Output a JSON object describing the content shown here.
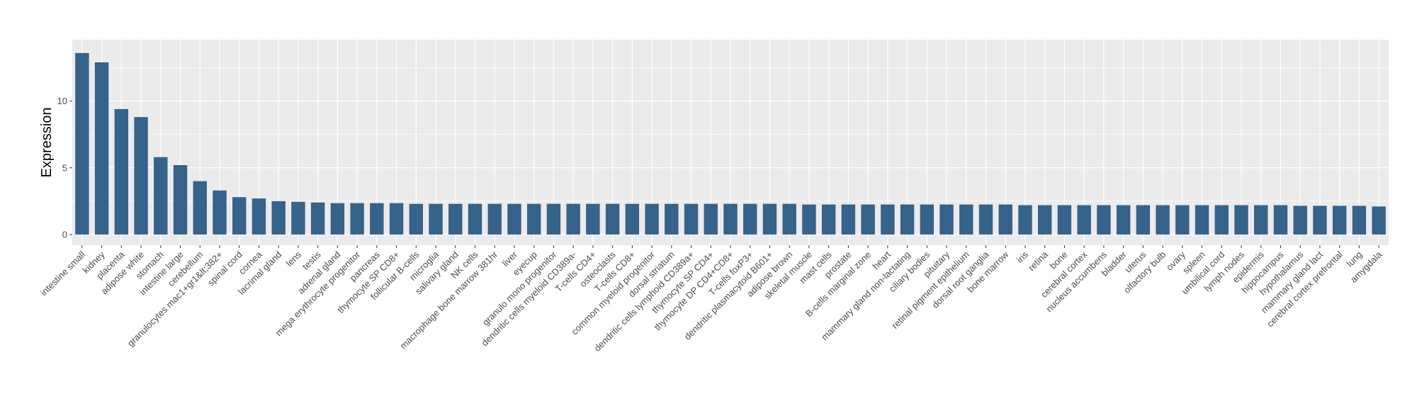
{
  "chart_data": {
    "type": "bar",
    "title": "",
    "xlabel": "",
    "ylabel": "Expression",
    "ylim": [
      -0.8,
      14.6
    ],
    "yticks": [
      0,
      5,
      10
    ],
    "grid": true,
    "colors": {
      "bar": "#35638A",
      "panel": "#EBEBEB",
      "grid": "#FFFFFF"
    },
    "categories": [
      "intestine small",
      "kidney",
      "placenta",
      "adipose white",
      "stomach",
      "intestine large",
      "cerebellum",
      "granulocytes mac1+gr1&lt;382+",
      "spinal cord",
      "cornea",
      "lacrimal gland",
      "lens",
      "testis",
      "adrenal gland",
      "mega erythrocyte progenitor",
      "pancreas",
      "thymocyte SP CD8+",
      "follicular B-cells",
      "microglia",
      "salivary gland",
      "NK cells",
      "macrophage bone marrow 381hr",
      "liver",
      "eyecup",
      "granulo mono progenitor",
      "dendritic cells myeloid CD389a-",
      "T-cells CD4+",
      "osteoclasts",
      "T-cells CD8+",
      "common myeloid progenitor",
      "dorsal striatum",
      "dendritic cells lymphoid CD389a+",
      "thymocyte SP CD4+",
      "thymocyte DP CD4+CD8+",
      "T-cells foxP3+",
      "dendritic plasmacytoid B601+",
      "adipose brown",
      "skeletal muscle",
      "mast cells",
      "prostate",
      "B-cells marginal zone",
      "heart",
      "mammary gland non-lactating",
      "ciliary bodies",
      "pituitary",
      "retinal pigment epithelium",
      "dorsal root ganglia",
      "bone marrow",
      "iris",
      "retina",
      "bone",
      "cerebral cortex",
      "nucleus accumbens",
      "bladder",
      "uterus",
      "olfactory bulb",
      "ovary",
      "spleen",
      "umbilical cord",
      "lymph nodes",
      "epidermis",
      "hippocampus",
      "hypothalamus",
      "mammary gland lact",
      "cerebral cortex prefrontal",
      "lung",
      "amygdala"
    ],
    "values": [
      13.6,
      12.9,
      9.4,
      8.8,
      5.8,
      5.2,
      4.0,
      3.3,
      2.8,
      2.7,
      2.5,
      2.45,
      2.4,
      2.35,
      2.35,
      2.35,
      2.35,
      2.3,
      2.3,
      2.3,
      2.3,
      2.3,
      2.3,
      2.3,
      2.3,
      2.3,
      2.3,
      2.3,
      2.3,
      2.3,
      2.3,
      2.3,
      2.3,
      2.3,
      2.3,
      2.3,
      2.3,
      2.25,
      2.25,
      2.25,
      2.25,
      2.25,
      2.25,
      2.25,
      2.25,
      2.25,
      2.25,
      2.25,
      2.2,
      2.2,
      2.2,
      2.2,
      2.2,
      2.2,
      2.2,
      2.2,
      2.2,
      2.2,
      2.2,
      2.2,
      2.2,
      2.2,
      2.15,
      2.15,
      2.15,
      2.15,
      2.1
    ]
  }
}
